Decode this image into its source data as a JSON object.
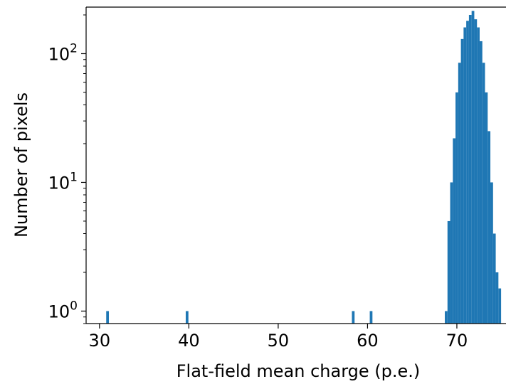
{
  "chart_data": {
    "type": "bar",
    "title": "",
    "xlabel": "Flat-field mean charge (p.e.)",
    "ylabel": "Number of pixels",
    "yscale": "log",
    "xlim": [
      28.5,
      75.5
    ],
    "ylim": [
      0.8,
      230
    ],
    "xticks": [
      30,
      40,
      50,
      60,
      70
    ],
    "yticks": [
      {
        "base": "10",
        "exp": "0",
        "value": 1
      },
      {
        "base": "10",
        "exp": "1",
        "value": 10
      },
      {
        "base": "10",
        "exp": "2",
        "value": 100
      }
    ],
    "grid": false,
    "bar_color": "#1f77b4",
    "bin_width": 0.3,
    "x": [
      30.9,
      39.8,
      58.4,
      60.4,
      68.8,
      69.1,
      69.4,
      69.7,
      70.0,
      70.3,
      70.6,
      70.9,
      71.2,
      71.5,
      71.8,
      72.1,
      72.4,
      72.7,
      73.0,
      73.3,
      73.6,
      73.9,
      74.2,
      74.5,
      74.8
    ],
    "values": [
      1,
      1,
      1,
      1,
      1,
      5,
      10,
      22,
      50,
      85,
      130,
      160,
      180,
      200,
      215,
      185,
      160,
      125,
      85,
      50,
      25,
      10,
      4,
      2,
      1.5
    ]
  }
}
